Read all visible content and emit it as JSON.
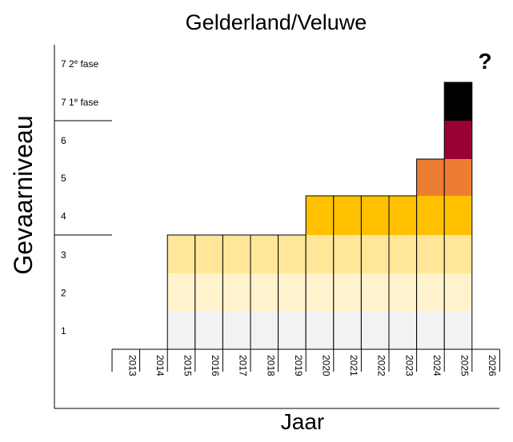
{
  "chart_data": {
    "type": "stacked-bar",
    "title": "Gelderland/Veluwe",
    "xlabel": "Jaar",
    "ylabel": "Gevaarniveau",
    "annotation": "?",
    "level_labels": [
      "1",
      "2",
      "3",
      "4",
      "5",
      "6",
      "7 1e fase",
      "7 2e fase"
    ],
    "level_labels_display": [
      {
        "main": "1",
        "sup": ""
      },
      {
        "main": "2",
        "sup": ""
      },
      {
        "main": "3",
        "sup": ""
      },
      {
        "main": "4",
        "sup": ""
      },
      {
        "main": "5",
        "sup": ""
      },
      {
        "main": "6",
        "sup": ""
      },
      {
        "main": "7 1",
        "sup": "e",
        "rest": " fase"
      },
      {
        "main": "7 2",
        "sup": "e",
        "rest": " fase"
      }
    ],
    "categories": [
      "2013",
      "2014",
      "2015",
      "2016",
      "2017",
      "2018",
      "2019",
      "2020",
      "2021",
      "2022",
      "2023",
      "2024",
      "2025",
      "2026"
    ],
    "values": [
      0,
      0,
      3,
      3,
      3,
      3,
      3,
      4,
      4,
      4,
      4,
      5,
      7,
      null
    ],
    "level_colors": [
      "#f2f2f2",
      "#fff2cc",
      "#ffe699",
      "#ffc000",
      "#ed7d31",
      "#990033",
      "#000000",
      "#000000"
    ],
    "ylim": [
      0,
      8
    ]
  }
}
